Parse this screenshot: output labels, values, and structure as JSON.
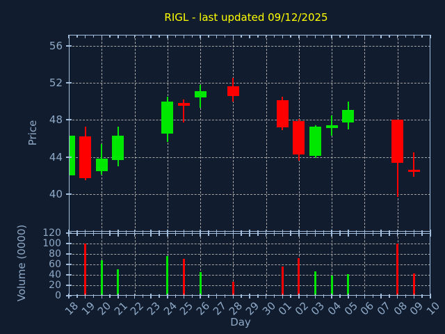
{
  "title": {
    "text": "RIGL - last updated 09/12/2025"
  },
  "colors": {
    "background": "#111d2e",
    "axis_frame": "#a3bfdd",
    "labels": "#8fa9c7",
    "grid": "#a6a6a6",
    "title": "#ffff00",
    "candle_up": "#00e800",
    "candle_down": "#ff0000"
  },
  "chart_data": {
    "type": "candlestick_with_volume",
    "title": "RIGL - last updated 09/12/2025",
    "xlabel": "Day",
    "ylabel": "Price",
    "y2label": "Volume (0000)",
    "x_tick_labels": [
      "18",
      "19",
      "20",
      "21",
      "22",
      "23",
      "24",
      "25",
      "26",
      "27",
      "28",
      "29",
      "30",
      "01",
      "02",
      "03",
      "04",
      "05",
      "06",
      "07",
      "08",
      "09",
      "10"
    ],
    "price_axis": {
      "ticks": [
        56,
        52,
        48,
        44,
        40
      ],
      "range": [
        36.3,
        57.2
      ],
      "grid": true
    },
    "volume_axis": {
      "ticks": [
        120,
        100,
        80,
        60,
        40,
        20,
        0
      ],
      "range": [
        0,
        120
      ],
      "grid": true
    },
    "x_gridline_indices": [
      2,
      4,
      6,
      8,
      10,
      12,
      14,
      16,
      18,
      20
    ],
    "legend": "none",
    "candles": [
      {
        "day": "18",
        "i": 0,
        "open": 42.0,
        "high": 46.3,
        "low": 42.0,
        "close": 46.3,
        "volume": 0
      },
      {
        "day": "19",
        "i": 1,
        "open": 46.2,
        "high": 47.3,
        "low": 41.5,
        "close": 41.7,
        "volume": 100
      },
      {
        "day": "20",
        "i": 2,
        "open": 42.5,
        "high": 45.4,
        "low": 42.1,
        "close": 43.8,
        "volume": 68
      },
      {
        "day": "21",
        "i": 3,
        "open": 43.7,
        "high": 47.3,
        "low": 43.0,
        "close": 46.3,
        "volume": 51
      },
      {
        "day": "24",
        "i": 6,
        "open": 46.5,
        "high": 50.5,
        "low": 45.6,
        "close": 50.0,
        "volume": 76
      },
      {
        "day": "25",
        "i": 7,
        "open": 49.8,
        "high": 50.2,
        "low": 47.7,
        "close": 49.5,
        "volume": 71
      },
      {
        "day": "26",
        "i": 8,
        "open": 50.4,
        "high": 51.8,
        "low": 49.3,
        "close": 51.1,
        "volume": 46
      },
      {
        "day": "28",
        "i": 10,
        "open": 51.6,
        "high": 52.5,
        "low": 50.0,
        "close": 50.6,
        "volume": 27
      },
      {
        "day": "01",
        "i": 13,
        "open": 50.1,
        "high": 50.5,
        "low": 46.9,
        "close": 47.2,
        "volume": 56
      },
      {
        "day": "02",
        "i": 14,
        "open": 47.9,
        "high": 48.1,
        "low": 43.6,
        "close": 44.3,
        "volume": 72
      },
      {
        "day": "03",
        "i": 15,
        "open": 44.1,
        "high": 47.4,
        "low": 43.9,
        "close": 47.3,
        "volume": 47
      },
      {
        "day": "04",
        "i": 16,
        "open": 47.1,
        "high": 48.5,
        "low": 46.3,
        "close": 47.4,
        "volume": 39
      },
      {
        "day": "05",
        "i": 17,
        "open": 47.7,
        "high": 50.0,
        "low": 47.0,
        "close": 49.1,
        "volume": 41
      },
      {
        "day": "08",
        "i": 20,
        "open": 48.0,
        "high": 48.0,
        "low": 39.7,
        "close": 43.4,
        "volume": 100
      },
      {
        "day": "09",
        "i": 21,
        "open": 42.6,
        "high": 44.5,
        "low": 41.9,
        "close": 42.4,
        "volume": 43
      }
    ]
  }
}
